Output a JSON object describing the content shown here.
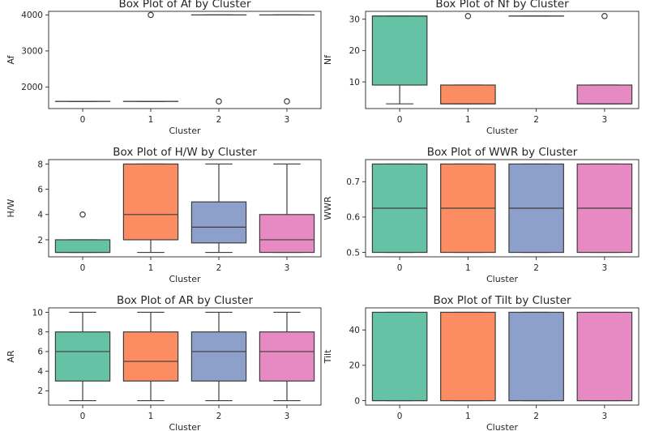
{
  "palette": [
    "#66c2a5",
    "#fc8d62",
    "#8da0cb",
    "#e78ac3"
  ],
  "chart_data": [
    {
      "type": "box",
      "title": "Box Plot of Af by Cluster",
      "xlabel": "Cluster",
      "ylabel": "Af",
      "categories": [
        "0",
        "1",
        "2",
        "3"
      ],
      "ylim": [
        1400,
        4100
      ],
      "yticks": [
        2000,
        3000,
        4000
      ],
      "boxes": [
        {
          "q1": 1600,
          "median": 1600,
          "q3": 1600,
          "whislo": 1600,
          "whishi": 1600,
          "outliers": []
        },
        {
          "q1": 1600,
          "median": 1600,
          "q3": 1600,
          "whislo": 1600,
          "whishi": 1600,
          "outliers": [
            4000
          ]
        },
        {
          "q1": 4000,
          "median": 4000,
          "q3": 4000,
          "whislo": 4000,
          "whishi": 4000,
          "outliers": [
            1600
          ]
        },
        {
          "q1": 4000,
          "median": 4000,
          "q3": 4000,
          "whislo": 4000,
          "whishi": 4000,
          "outliers": [
            1600
          ]
        }
      ]
    },
    {
      "type": "box",
      "title": "Box Plot of Nf by Cluster",
      "xlabel": "Cluster",
      "ylabel": "Nf",
      "categories": [
        "0",
        "1",
        "2",
        "3"
      ],
      "ylim": [
        1.5,
        32.5
      ],
      "yticks": [
        10,
        20,
        30
      ],
      "boxes": [
        {
          "q1": 9,
          "median": 31,
          "q3": 31,
          "whislo": 3,
          "whishi": 31,
          "outliers": []
        },
        {
          "q1": 3,
          "median": 3,
          "q3": 9,
          "whislo": 3,
          "whishi": 9,
          "outliers": [
            31
          ]
        },
        {
          "q1": 31,
          "median": 31,
          "q3": 31,
          "whislo": 31,
          "whishi": 31,
          "outliers": []
        },
        {
          "q1": 3,
          "median": 3,
          "q3": 9,
          "whislo": 3,
          "whishi": 9,
          "outliers": [
            31
          ]
        }
      ]
    },
    {
      "type": "box",
      "title": "Box Plot of H/W by Cluster",
      "xlabel": "Cluster",
      "ylabel": "H/W",
      "categories": [
        "0",
        "1",
        "2",
        "3"
      ],
      "ylim": [
        0.65,
        8.35
      ],
      "yticks": [
        2,
        4,
        6,
        8
      ],
      "boxes": [
        {
          "q1": 1,
          "median": 1,
          "q3": 2,
          "whislo": 1,
          "whishi": 2,
          "outliers": [
            4
          ]
        },
        {
          "q1": 2,
          "median": 4,
          "q3": 8,
          "whislo": 1,
          "whishi": 8,
          "outliers": []
        },
        {
          "q1": 1.75,
          "median": 3,
          "q3": 5,
          "whislo": 1,
          "whishi": 8,
          "outliers": []
        },
        {
          "q1": 1,
          "median": 2,
          "q3": 4,
          "whislo": 1,
          "whishi": 8,
          "outliers": []
        }
      ]
    },
    {
      "type": "box",
      "title": "Box Plot of WWR by Cluster",
      "xlabel": "Cluster",
      "ylabel": "WWR",
      "categories": [
        "0",
        "1",
        "2",
        "3"
      ],
      "ylim": [
        0.4875,
        0.7625
      ],
      "yticks": [
        0.5,
        0.6,
        0.7
      ],
      "boxes": [
        {
          "q1": 0.5,
          "median": 0.625,
          "q3": 0.75,
          "whislo": 0.5,
          "whishi": 0.75,
          "outliers": []
        },
        {
          "q1": 0.5,
          "median": 0.625,
          "q3": 0.75,
          "whislo": 0.5,
          "whishi": 0.75,
          "outliers": []
        },
        {
          "q1": 0.5,
          "median": 0.625,
          "q3": 0.75,
          "whislo": 0.5,
          "whishi": 0.75,
          "outliers": []
        },
        {
          "q1": 0.5,
          "median": 0.625,
          "q3": 0.75,
          "whislo": 0.5,
          "whishi": 0.75,
          "outliers": []
        }
      ]
    },
    {
      "type": "box",
      "title": "Box Plot of AR by Cluster",
      "xlabel": "Cluster",
      "ylabel": "AR",
      "categories": [
        "0",
        "1",
        "2",
        "3"
      ],
      "ylim": [
        0.55,
        10.45
      ],
      "yticks": [
        2,
        4,
        6,
        8,
        10
      ],
      "boxes": [
        {
          "q1": 3,
          "median": 6,
          "q3": 8,
          "whislo": 1,
          "whishi": 10,
          "outliers": []
        },
        {
          "q1": 3,
          "median": 5,
          "q3": 8,
          "whislo": 1,
          "whishi": 10,
          "outliers": []
        },
        {
          "q1": 3,
          "median": 6,
          "q3": 8,
          "whislo": 1,
          "whishi": 10,
          "outliers": []
        },
        {
          "q1": 3,
          "median": 6,
          "q3": 8,
          "whislo": 1,
          "whishi": 10,
          "outliers": []
        }
      ]
    },
    {
      "type": "box",
      "title": "Box Plot of Tilt by Cluster",
      "xlabel": "Cluster",
      "ylabel": "Tilt",
      "categories": [
        "0",
        "1",
        "2",
        "3"
      ],
      "ylim": [
        -2.5,
        52.5
      ],
      "yticks": [
        0,
        20,
        40
      ],
      "boxes": [
        {
          "q1": 0,
          "median": 0,
          "q3": 50,
          "whislo": 0,
          "whishi": 50,
          "outliers": []
        },
        {
          "q1": 0,
          "median": 0,
          "q3": 50,
          "whislo": 0,
          "whishi": 50,
          "outliers": []
        },
        {
          "q1": 0,
          "median": 0,
          "q3": 50,
          "whislo": 0,
          "whishi": 50,
          "outliers": []
        },
        {
          "q1": 0,
          "median": 0,
          "q3": 50,
          "whislo": 0,
          "whishi": 50,
          "outliers": []
        }
      ]
    }
  ]
}
